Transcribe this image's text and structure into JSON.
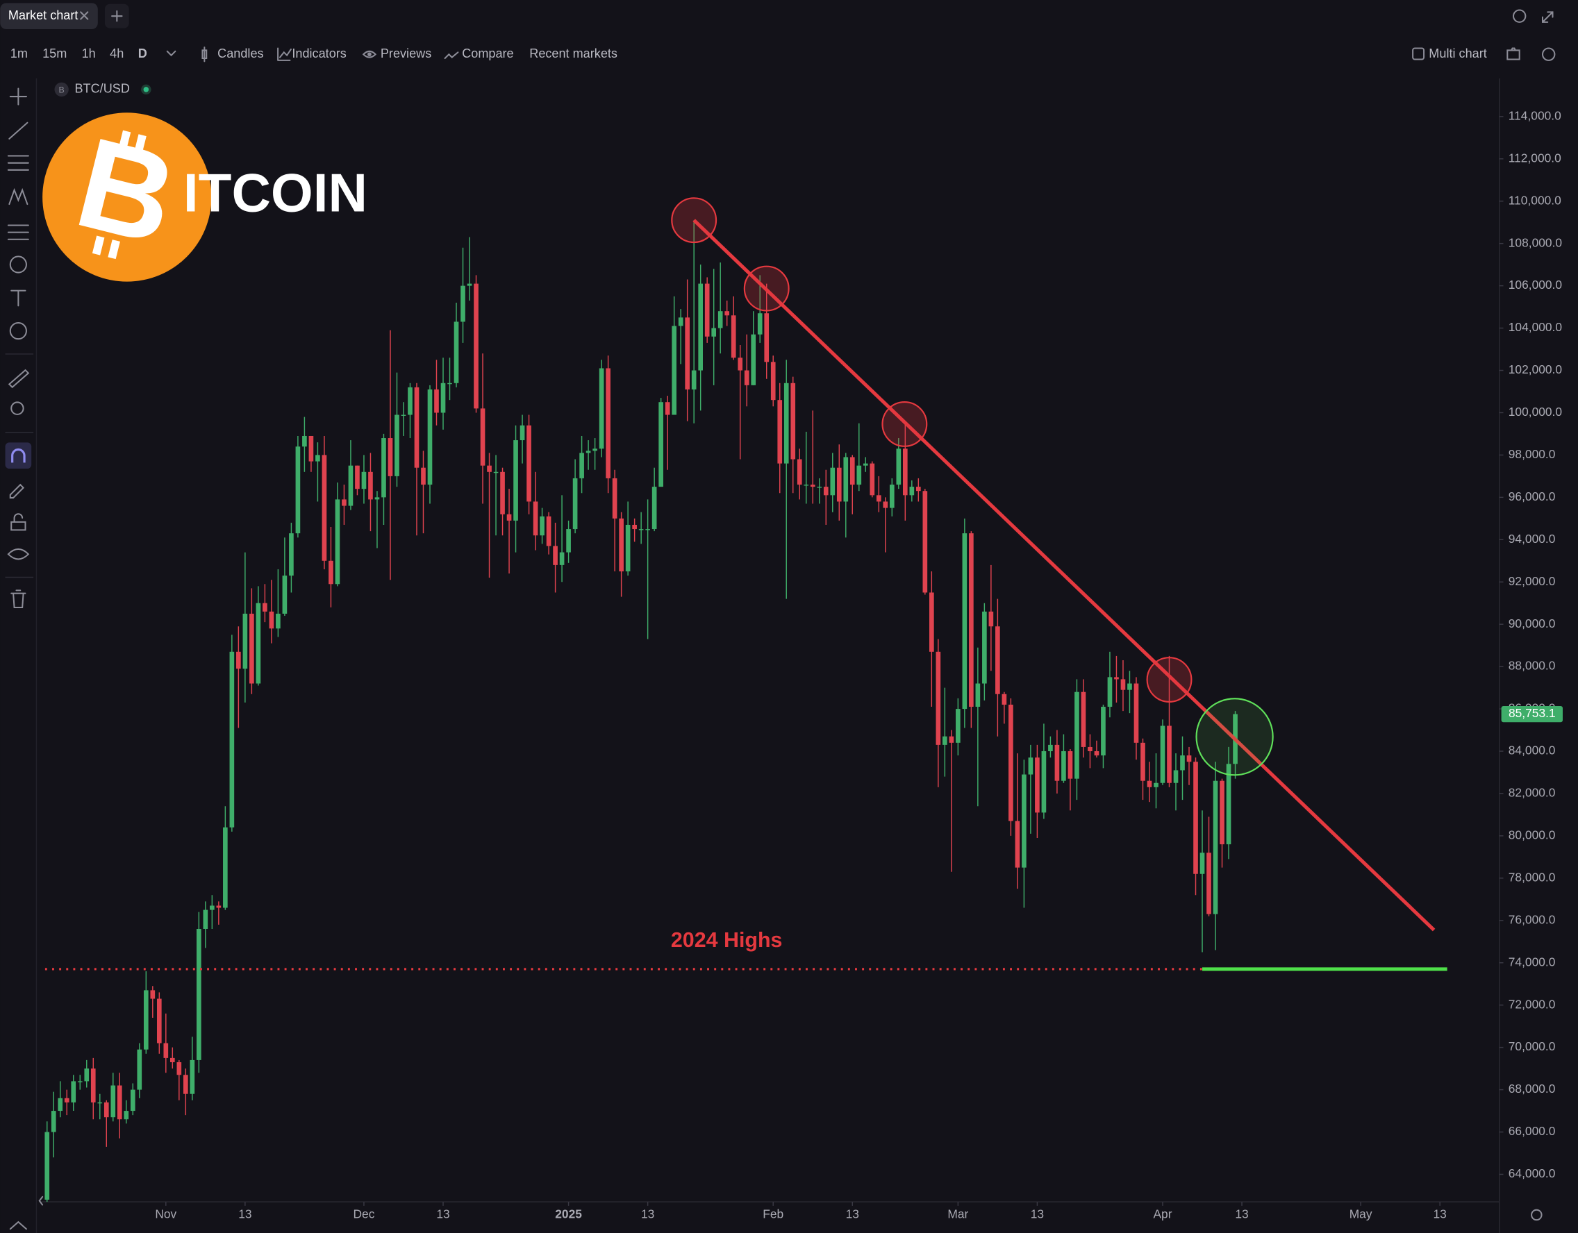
{
  "ui": {
    "tab": "Market chart",
    "intervals": [
      "1m",
      "15m",
      "1h",
      "4h",
      "D"
    ],
    "tools": [
      "Candles",
      "Indicators",
      "Previews",
      "Compare",
      "Recent markets"
    ],
    "multi_chart": "Multi chart",
    "symbol_badge": "B",
    "symbol": "BTC/USD",
    "logo_letter": "B",
    "logo_text": "ITCOIN"
  },
  "chart_data": {
    "type": "candlestick",
    "up_color": "#3fae6a",
    "down_color": "#e0434f",
    "open": [
      62800,
      66000,
      67000,
      67600,
      67400,
      68400,
      68400,
      69000,
      67400,
      67400,
      66700,
      68200,
      66600,
      67000,
      68000,
      69900,
      72700,
      72300,
      70200,
      69500,
      69300,
      68700,
      67800,
      69400,
      75600,
      76500,
      76700,
      76600,
      80400,
      88700,
      87900,
      90500,
      87200,
      91000,
      90600,
      89800,
      90500,
      92300,
      94300,
      98400,
      98900,
      97700,
      98000,
      93000,
      91900,
      95900,
      95600,
      97500,
      96400,
      97200,
      95900,
      96000,
      98800,
      97000,
      99900,
      99900,
      101200,
      97400,
      96600,
      101100,
      100000,
      101400,
      101400,
      104300,
      106000,
      106100,
      100200,
      97500,
      97200,
      97200,
      95200,
      94900,
      98700,
      99400,
      95800,
      94200,
      95100,
      93700,
      92800,
      93400,
      94500,
      96900,
      98100,
      98200,
      98300,
      102100,
      96900,
      95000,
      92500,
      94700,
      94500,
      94500,
      94500,
      96500,
      100500,
      99900,
      104100,
      104500,
      101100,
      102000,
      106100,
      103600,
      104000,
      104800,
      104600,
      102600,
      102000,
      101300,
      103700,
      104700,
      102400,
      100600,
      97600,
      101400,
      97800,
      96600,
      96600,
      96500,
      96500,
      96100,
      97400,
      95800,
      97900,
      96600,
      97500,
      97600,
      96100,
      95800,
      95500,
      96600,
      98300,
      96100,
      96500,
      96300,
      91500,
      88700,
      84300,
      84700,
      84400,
      86000,
      94300,
      86100,
      87200,
      90600,
      89900,
      86700,
      86200,
      80700,
      78500,
      82900,
      83700,
      81100,
      84000,
      84300,
      82600,
      84000,
      82700,
      86800,
      84200,
      84000,
      83800,
      86100,
      87500,
      87400,
      86900,
      87200,
      84400,
      82600,
      82300,
      82500,
      85200,
      82500,
      83100,
      83800,
      83500,
      78200,
      79200,
      76300,
      82600,
      79600,
      83400
    ],
    "high": [
      66500,
      67900,
      68400,
      68000,
      68700,
      68700,
      69400,
      69500,
      67800,
      67500,
      68800,
      68800,
      67500,
      68300,
      70200,
      73600,
      72900,
      72600,
      71600,
      70000,
      69400,
      69000,
      70500,
      76400,
      76900,
      77200,
      76900,
      81400,
      89500,
      89900,
      93400,
      91700,
      91800,
      91900,
      92100,
      92600,
      94100,
      94800,
      98900,
      99800,
      98900,
      98600,
      98900,
      94600,
      96700,
      96600,
      98700,
      97500,
      98000,
      98100,
      96300,
      99000,
      103900,
      101900,
      100500,
      101400,
      101400,
      98200,
      101300,
      102500,
      102600,
      102600,
      105200,
      107800,
      108300,
      106500,
      102800,
      98100,
      98000,
      97400,
      96400,
      99400,
      99900,
      99900,
      97200,
      95500,
      95300,
      94800,
      96100,
      94900,
      97800,
      98900,
      98700,
      98800,
      102500,
      102700,
      97300,
      95300,
      95800,
      95000,
      95300,
      95900,
      97400,
      100700,
      100800,
      105500,
      104900,
      106300,
      109100,
      107000,
      106400,
      106800,
      107100,
      105300,
      105500,
      103200,
      103700,
      104800,
      106500,
      106100,
      102700,
      101400,
      102500,
      101700,
      98300,
      99100,
      100100,
      96900,
      97300,
      98100,
      98500,
      98100,
      98000,
      99500,
      97900,
      97700,
      97000,
      96000,
      96900,
      98800,
      99500,
      96800,
      96900,
      96400,
      92500,
      89300,
      87000,
      85000,
      86500,
      95000,
      94400,
      88900,
      91000,
      92800,
      91200,
      86800,
      86500,
      83900,
      83600,
      84300,
      84300,
      85300,
      84700,
      85000,
      84800,
      84100,
      87400,
      87400,
      84800,
      84500,
      86200,
      88700,
      88500,
      88300,
      87800,
      87500,
      84600,
      83500,
      83900,
      85500,
      88500,
      83900,
      84700,
      84200,
      83700,
      81200,
      80900,
      83500,
      82700,
      84200,
      85900
    ],
    "low": [
      62400,
      64800,
      66700,
      66800,
      67000,
      68000,
      68100,
      66600,
      66600,
      65300,
      66500,
      65700,
      66400,
      66800,
      67600,
      69700,
      71400,
      69700,
      68800,
      69000,
      67500,
      66800,
      67500,
      68800,
      74700,
      75600,
      75800,
      76500,
      80200,
      85100,
      86300,
      86700,
      87100,
      90100,
      89100,
      89400,
      90400,
      91500,
      94100,
      97200,
      97200,
      95800,
      92600,
      90800,
      91800,
      94700,
      95400,
      96100,
      95700,
      94400,
      93600,
      94700,
      92100,
      96500,
      98900,
      98800,
      94200,
      94300,
      95700,
      99400,
      99200,
      100600,
      101200,
      103300,
      105300,
      100000,
      95700,
      92200,
      94200,
      94200,
      92400,
      93400,
      97600,
      95200,
      93500,
      93800,
      93300,
      91500,
      92000,
      92900,
      94300,
      96200,
      97300,
      97300,
      97900,
      96200,
      92500,
      91300,
      92300,
      93900,
      93800,
      89300,
      94400,
      96500,
      97300,
      99900,
      102300,
      99600,
      99500,
      100100,
      103300,
      101300,
      102800,
      104100,
      102500,
      97800,
      100300,
      101300,
      103300,
      101600,
      100300,
      96200,
      91200,
      96200,
      95900,
      95700,
      95700,
      95700,
      94700,
      95300,
      94900,
      94100,
      95200,
      96300,
      97200,
      96000,
      95300,
      93400,
      95100,
      96400,
      94900,
      95800,
      95800,
      91400,
      86100,
      82300,
      82800,
      78300,
      83800,
      85100,
      85100,
      81400,
      86400,
      87800,
      84700,
      85300,
      80000,
      77500,
      76600,
      80100,
      79900,
      80800,
      83700,
      82000,
      82500,
      81200,
      81700,
      83700,
      83200,
      83700,
      83200,
      85600,
      86300,
      85900,
      85800,
      83600,
      81700,
      81600,
      81300,
      82400,
      82300,
      81200,
      81700,
      82400,
      77200,
      74500,
      76200,
      74600,
      78500,
      78900,
      82700
    ],
    "close": [
      66000,
      67000,
      67600,
      67400,
      68400,
      68400,
      69000,
      67400,
      67400,
      66700,
      68200,
      66600,
      67000,
      68000,
      69900,
      72700,
      72300,
      70200,
      69500,
      69300,
      68700,
      67800,
      69400,
      75600,
      76500,
      76700,
      76600,
      80400,
      88700,
      87900,
      90500,
      87200,
      91000,
      90600,
      89800,
      90500,
      92300,
      94300,
      98400,
      98900,
      97700,
      98000,
      93000,
      91900,
      95900,
      95600,
      97500,
      96400,
      97200,
      95900,
      96000,
      98800,
      97000,
      99900,
      99900,
      101200,
      97400,
      96600,
      101100,
      100000,
      101400,
      101400,
      104300,
      106000,
      106100,
      100200,
      97500,
      97200,
      97200,
      95200,
      94900,
      98700,
      99400,
      95800,
      94200,
      95100,
      93700,
      92800,
      93400,
      94500,
      96900,
      98100,
      98200,
      98300,
      102100,
      96900,
      95000,
      92500,
      94700,
      94500,
      94500,
      94500,
      96500,
      100500,
      99900,
      104100,
      104500,
      101100,
      102000,
      106100,
      103600,
      104000,
      104800,
      104600,
      102600,
      102000,
      101300,
      103700,
      104700,
      102400,
      100600,
      97600,
      101400,
      97800,
      96600,
      96600,
      96500,
      96500,
      96100,
      97400,
      95800,
      97900,
      96600,
      97500,
      97600,
      96100,
      95800,
      95500,
      96600,
      98300,
      96100,
      96500,
      96300,
      91500,
      88700,
      84300,
      84700,
      84400,
      86000,
      94300,
      86100,
      87200,
      90600,
      89900,
      86700,
      86200,
      80700,
      78500,
      82900,
      83700,
      81100,
      84000,
      84300,
      82600,
      84000,
      82700,
      86800,
      84200,
      84000,
      83800,
      86100,
      87500,
      87400,
      86900,
      87200,
      84400,
      82600,
      82300,
      82500,
      85200,
      82500,
      83100,
      83800,
      83500,
      78200,
      79200,
      76300,
      82600,
      79600,
      83400,
      85753.1
    ],
    "last_price": {
      "value": 85753.1,
      "label": "85,753.1"
    },
    "xlim": [
      -1,
      220
    ],
    "xticks": [
      {
        "value": 18,
        "label": "Nov"
      },
      {
        "value": 30,
        "label": "13"
      },
      {
        "value": 48,
        "label": "Dec"
      },
      {
        "value": 60,
        "label": "13"
      },
      {
        "value": 79,
        "label": "2025"
      },
      {
        "value": 91,
        "label": "13"
      },
      {
        "value": 110,
        "label": "Feb"
      },
      {
        "value": 122,
        "label": "13"
      },
      {
        "value": 138,
        "label": "Mar"
      },
      {
        "value": 150,
        "label": "13"
      },
      {
        "value": 169,
        "label": "Apr"
      },
      {
        "value": 181,
        "label": "13"
      },
      {
        "value": 199,
        "label": "May"
      },
      {
        "value": 211,
        "label": "13"
      }
    ],
    "ylim": [
      62700,
      115800
    ],
    "yticks": [
      {
        "value": 64000,
        "label": "64,000.0"
      },
      {
        "value": 66000,
        "label": "66,000.0"
      },
      {
        "value": 68000,
        "label": "68,000.0"
      },
      {
        "value": 70000,
        "label": "70,000.0"
      },
      {
        "value": 72000,
        "label": "72,000.0"
      },
      {
        "value": 74000,
        "label": "74,000.0"
      },
      {
        "value": 76000,
        "label": "76,000.0"
      },
      {
        "value": 78000,
        "label": "78,000.0"
      },
      {
        "value": 80000,
        "label": "80,000.0"
      },
      {
        "value": 82000,
        "label": "82,000.0"
      },
      {
        "value": 84000,
        "label": "84,000.0"
      },
      {
        "value": 86000,
        "label": "86,000.0"
      },
      {
        "value": 88000,
        "label": "88,000.0"
      },
      {
        "value": 90000,
        "label": "90,000.0"
      },
      {
        "value": 92000,
        "label": "92,000.0"
      },
      {
        "value": 94000,
        "label": "94,000.0"
      },
      {
        "value": 96000,
        "label": "96,000.0"
      },
      {
        "value": 98000,
        "label": "98,000.0"
      },
      {
        "value": 100000,
        "label": "100,000.0"
      },
      {
        "value": 102000,
        "label": "102,000.0"
      },
      {
        "value": 104000,
        "label": "104,000.0"
      },
      {
        "value": 106000,
        "label": "106,000.0"
      },
      {
        "value": 108000,
        "label": "108,000.0"
      },
      {
        "value": 110000,
        "label": "110,000.0"
      },
      {
        "value": 112000,
        "label": "112,000.0"
      },
      {
        "value": 114000,
        "label": "114,000.0"
      }
    ],
    "grid": false,
    "trendline": {
      "x": [
        98,
        210.1
      ],
      "y": [
        109100,
        75550
      ],
      "color": "#e5393f"
    },
    "highlights": [
      {
        "x": 98,
        "y": 109100,
        "color": "#e5393f"
      },
      {
        "x": 109,
        "y": 105870,
        "color": "#e5393f"
      },
      {
        "x": 129.9,
        "y": 99460,
        "color": "#e5393f"
      },
      {
        "x": 170,
        "y": 87380,
        "color": "#e5393f"
      },
      {
        "x": 179.9,
        "y": 84680,
        "color": "#5fe05a"
      }
    ],
    "support": {
      "label": "2024 Highs",
      "value": 73700,
      "x": [
        -0.3,
        175,
        212.1
      ],
      "colors": [
        "#e5393f",
        "#4fe04a"
      ]
    }
  }
}
